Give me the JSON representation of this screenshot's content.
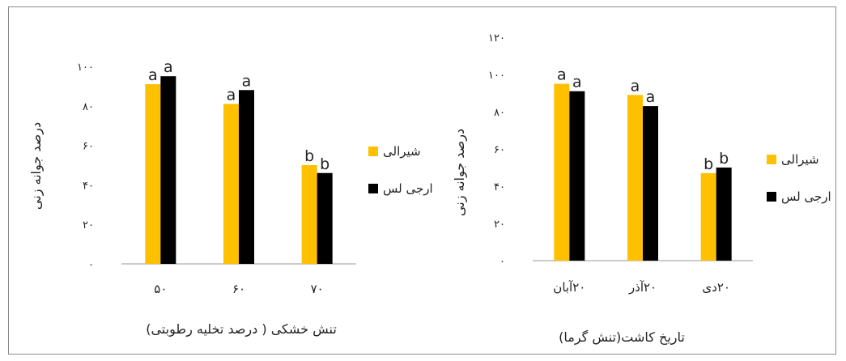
{
  "chart_data": [
    {
      "type": "bar",
      "xlabel": "تنش خشکی ( درصد تخلیه رطوبتی)",
      "ylabel": "درصد جوانه زنی",
      "categories": [
        "۵۰",
        "۶۰",
        "۷۰"
      ],
      "ylim": [
        0,
        100
      ],
      "yticks": [
        "۰",
        "۲۰",
        "۴۰",
        "۶۰",
        "۸۰",
        "۱۰۰"
      ],
      "ytick_values": [
        0,
        20,
        40,
        60,
        80,
        100
      ],
      "legend_position": "right",
      "series": [
        {
          "name": "شیرالی",
          "color": "#FFC000",
          "values": [
            91,
            81,
            50
          ],
          "labels": [
            "a",
            "a",
            "b"
          ]
        },
        {
          "name": "ارجی لس",
          "color": "#000000",
          "values": [
            95,
            88,
            46
          ],
          "labels": [
            "a",
            "a",
            "b"
          ]
        }
      ]
    },
    {
      "type": "bar",
      "xlabel": "تاریخ کاشت(تنش گرما)",
      "ylabel": "درصد جوانه زنی",
      "categories": [
        "۲۰آبان",
        "۲۰آذر",
        "۲۰دی"
      ],
      "ylim": [
        0,
        120
      ],
      "yticks": [
        "۰",
        "۲۰",
        "۴۰",
        "۶۰",
        "۸۰",
        "۱۰۰",
        "۱۲۰"
      ],
      "ytick_values": [
        0,
        20,
        40,
        60,
        80,
        100,
        120
      ],
      "legend_position": "right",
      "series": [
        {
          "name": "شیرالی",
          "color": "#FFC000",
          "values": [
            95,
            89,
            47
          ],
          "labels": [
            "a",
            "a",
            "b"
          ]
        },
        {
          "name": "ارجی لس",
          "color": "#000000",
          "values": [
            91,
            83,
            50
          ],
          "labels": [
            "a",
            "a",
            "b"
          ]
        }
      ]
    }
  ]
}
